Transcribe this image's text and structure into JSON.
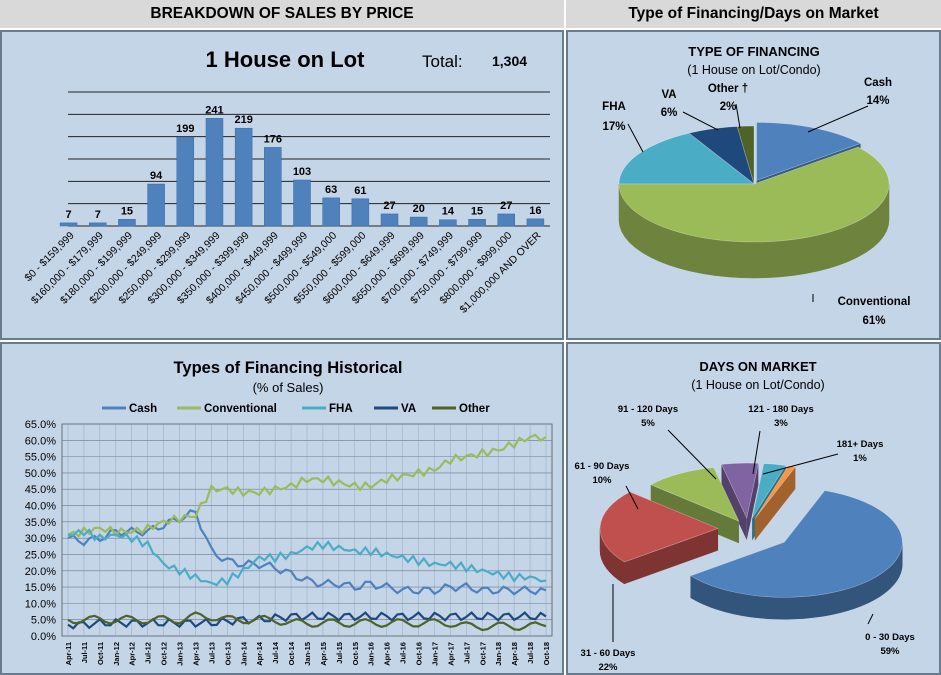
{
  "headers": {
    "left": "BREAKDOWN OF SALES BY PRICE",
    "right": "Type of Financing/Days on Market"
  },
  "colors": {
    "panel_bg": "#c5d5e8",
    "bar": "#4f81bd",
    "cash": "#4f81bd",
    "conventional": "#9bbb59",
    "fha": "#4bacc6",
    "va": "#1f497d",
    "other": "#4f6228",
    "d0_30": "#4f81bd",
    "d31_60": "#c0504d",
    "d61_90": "#9bbb59",
    "d91_120": "#8064a2",
    "d121_180": "#4bacc6",
    "d181": "#f79646"
  },
  "chart_data": [
    {
      "type": "bar",
      "title": "1 House on Lot",
      "total_label": "Total:",
      "total_value": "1,304",
      "categories": [
        "$0 - $159,999",
        "$160,000 - $179,999",
        "$180,000 - $199,999",
        "$200,000 - $249,999",
        "$250,000 - $299,999",
        "$300,000 - $349,999",
        "$350,000 - $399,999",
        "$400,000 - $449,999",
        "$450,000 - $499,999",
        "$500,000 - $549,000",
        "$550,000 - $599,000",
        "$600,000 - $649,999",
        "$650,000 - $699,999",
        "$700,000 - $749,999",
        "$750,000 - $799,999",
        "$800,000 - $999,000",
        "$1,000,000 AND OVER"
      ],
      "values": [
        7,
        7,
        15,
        94,
        199,
        241,
        219,
        176,
        103,
        63,
        61,
        27,
        20,
        14,
        15,
        27,
        16
      ],
      "data_labels": [
        "7",
        "7",
        "15",
        "94",
        "199",
        "241",
        "219",
        "176",
        "103",
        "63",
        "61",
        "27",
        "20",
        "14",
        "15",
        "27",
        "16"
      ],
      "ylim": [
        0,
        300
      ],
      "grid": true
    },
    {
      "type": "pie",
      "title": "TYPE OF FINANCING",
      "subtitle": "(1 House on Lot/Condo)",
      "slices": [
        {
          "name": "Cash",
          "pct_label": "14%",
          "value": 14
        },
        {
          "name": "Conventional",
          "pct_label": "61%",
          "value": 61
        },
        {
          "name": "FHA",
          "pct_label": "17%",
          "value": 17
        },
        {
          "name": "VA",
          "pct_label": "6%",
          "value": 6
        },
        {
          "name": "Other †",
          "pct_label": "2%",
          "value": 2
        }
      ]
    },
    {
      "type": "line",
      "title": "Types of Financing Historical",
      "subtitle": "(% of Sales)",
      "x": [
        "Apr-11",
        "Jul-11",
        "Oct-11",
        "Jan-12",
        "Apr-12",
        "Jul-12",
        "Oct-12",
        "Jan-13",
        "Apr-13",
        "Jul-13",
        "Oct-13",
        "Jan-14",
        "Apr-14",
        "Jul-14",
        "Oct-14",
        "Jan-15",
        "Apr-15",
        "Jul-15",
        "Oct-15",
        "Jan-16",
        "Apr-16",
        "Jul-16",
        "Oct-16",
        "Jan-17",
        "Apr-17",
        "Jul-17",
        "Oct-17",
        "Jan-18",
        "Apr-18",
        "Jul-18",
        "Oct-18"
      ],
      "y_ticks": [
        "65.0%",
        "60.0%",
        "55.0%",
        "50.0%",
        "45.0%",
        "40.0%",
        "35.0%",
        "30.0%",
        "25.0%",
        "20.0%",
        "15.0%",
        "10.0%",
        "5.0%",
        "0.0%"
      ],
      "ylim": [
        0,
        65
      ],
      "legend": "top",
      "grid": true,
      "series": [
        {
          "name": "Cash",
          "values": [
            30,
            29,
            30,
            32,
            32,
            32,
            34,
            36,
            38,
            26,
            23,
            22,
            22,
            21,
            19,
            17,
            16,
            16,
            15,
            16,
            15,
            14,
            14,
            14,
            15,
            15,
            14,
            14,
            14,
            14,
            14
          ]
        },
        {
          "name": "Conventional",
          "values": [
            31,
            32,
            33,
            32,
            32,
            33,
            35,
            36,
            37,
            45,
            45,
            44,
            44,
            45,
            46,
            48,
            48,
            47,
            46,
            46,
            48,
            49,
            50,
            51,
            54,
            55,
            56,
            57,
            59,
            61,
            61
          ]
        },
        {
          "name": "FHA",
          "values": [
            31,
            32,
            30,
            31,
            30,
            28,
            22,
            20,
            18,
            16,
            17,
            20,
            24,
            24,
            25,
            27,
            28,
            27,
            26,
            26,
            25,
            24,
            23,
            22,
            22,
            21,
            20,
            19,
            18,
            18,
            17
          ]
        },
        {
          "name": "VA",
          "values": [
            3.5,
            3.5,
            4,
            4,
            4,
            4,
            4,
            4,
            4,
            4,
            4.5,
            5,
            5,
            5.5,
            6,
            6,
            6,
            6,
            6,
            6,
            6,
            6,
            6,
            6,
            6,
            6,
            6,
            6,
            6,
            6,
            6
          ]
        },
        {
          "name": "Other",
          "values": [
            5,
            5,
            5,
            5,
            5,
            5,
            5,
            5,
            6,
            6,
            5,
            5,
            5,
            5,
            4,
            4,
            4,
            4,
            4,
            4,
            4,
            4,
            4,
            4,
            4,
            3,
            3,
            3,
            3,
            3,
            3
          ]
        }
      ]
    },
    {
      "type": "pie",
      "title": "DAYS ON MARKET",
      "subtitle": "(1 House on Lot/Condo)",
      "slices": [
        {
          "name": "0 - 30 Days",
          "pct_label": "59%",
          "value": 59
        },
        {
          "name": "31 - 60 Days",
          "pct_label": "22%",
          "value": 22
        },
        {
          "name": "61 - 90 Days",
          "pct_label": "10%",
          "value": 10
        },
        {
          "name": "91 - 120 Days",
          "pct_label": "5%",
          "value": 5
        },
        {
          "name": "121 - 180 Days",
          "pct_label": "3%",
          "value": 3
        },
        {
          "name": "181+ Days",
          "pct_label": "1%",
          "value": 1
        }
      ]
    }
  ]
}
